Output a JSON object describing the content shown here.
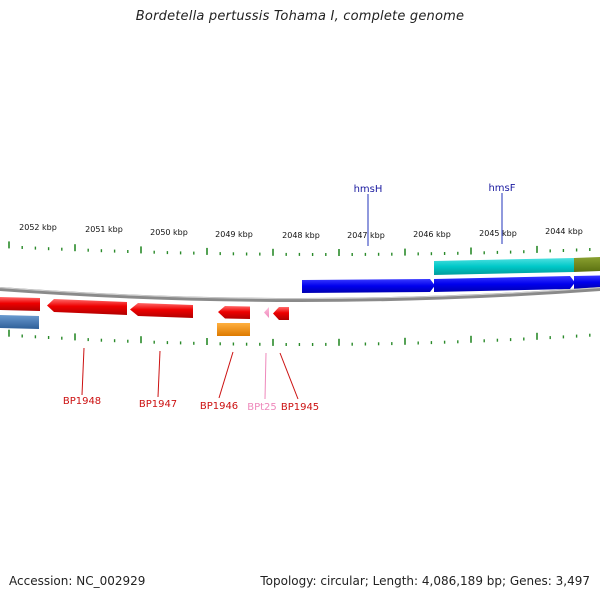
{
  "title": "Bordetella pertussis Tohama I, complete genome",
  "footer": {
    "accession": "Accession: NC_002929",
    "summary": "Topology: circular; Length: 4,086,189 bp; Genes: 3,497"
  },
  "colors": {
    "tick": "#2a8a2a",
    "backbone": "#8a8a8a",
    "forward_gene": "#0000ee",
    "reverse_gene": "#ee0000",
    "label_forward": "#1a1aa0",
    "label_reverse": "#cc1111",
    "label_trna": "#ee88bb"
  },
  "scale": {
    "labels": [
      "2052 kbp",
      "2051 kbp",
      "2050 kbp",
      "2049 kbp",
      "2048 kbp",
      "2047 kbp",
      "2046 kbp",
      "2045 kbp",
      "2044 kbp"
    ]
  },
  "gene_labels": [
    {
      "text": "hmsH",
      "strand": "forward"
    },
    {
      "text": "hmsF",
      "strand": "forward"
    },
    {
      "text": "BP1948",
      "strand": "reverse"
    },
    {
      "text": "BP1947",
      "strand": "reverse"
    },
    {
      "text": "BP1946",
      "strand": "reverse"
    },
    {
      "text": "BPt25",
      "strand": "trna"
    },
    {
      "text": "BP1945",
      "strand": "reverse"
    }
  ]
}
